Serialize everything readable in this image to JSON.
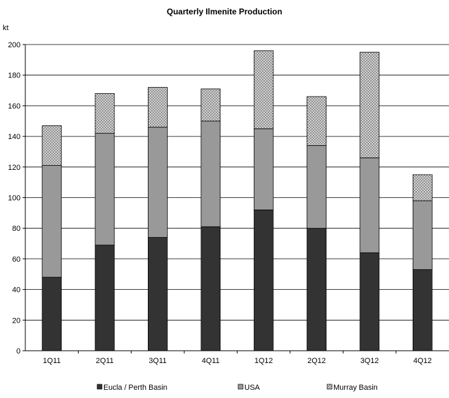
{
  "chart_data": {
    "type": "bar",
    "stacked": true,
    "title": "Quarterly Ilmenite Production",
    "ylabel": "kt",
    "xlabel": "",
    "ylim": [
      0,
      200
    ],
    "yticks": [
      0,
      20,
      40,
      60,
      80,
      100,
      120,
      140,
      160,
      180,
      200
    ],
    "grid": true,
    "legend_position": "bottom",
    "categories": [
      "1Q11",
      "2Q11",
      "3Q11",
      "4Q11",
      "1Q12",
      "2Q12",
      "3Q12",
      "4Q12"
    ],
    "series": [
      {
        "name": "Eucla / Perth Basin",
        "color": "#333333",
        "pattern": "solid",
        "values": [
          48,
          69,
          74,
          81,
          92,
          80,
          64,
          53
        ]
      },
      {
        "name": "USA",
        "color": "#999999",
        "pattern": "solid",
        "values": [
          73,
          73,
          72,
          69,
          53,
          54,
          62,
          45
        ]
      },
      {
        "name": "Murray Basin",
        "color": "#cccccc",
        "pattern": "crosshatch",
        "values": [
          26,
          26,
          26,
          21,
          51,
          32,
          69,
          17
        ]
      }
    ]
  }
}
